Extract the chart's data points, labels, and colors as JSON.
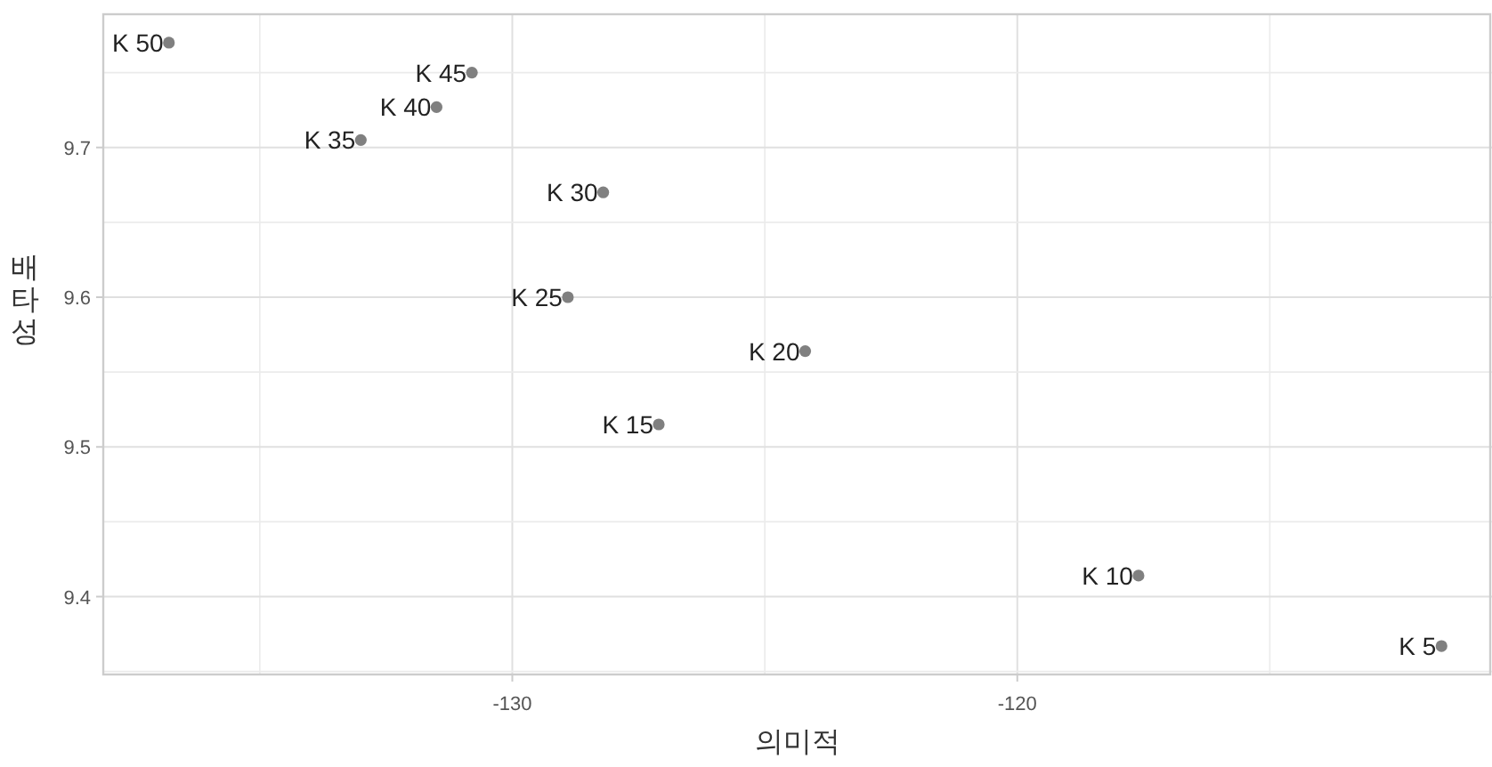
{
  "chart_data": {
    "type": "scatter",
    "xlabel": "의미적",
    "ylabel": "배타성",
    "x": [
      -136.8,
      -130.8,
      -131.5,
      -133.0,
      -128.2,
      -128.9,
      -124.2,
      -127.1,
      -117.6,
      -111.6
    ],
    "values": [
      9.77,
      9.75,
      9.727,
      9.705,
      9.67,
      9.6,
      9.564,
      9.515,
      9.414,
      9.367
    ],
    "color": "#808080",
    "marker": "circle",
    "xlim": [
      -138.1,
      -110.6
    ],
    "xticks": [
      -130,
      -120
    ],
    "ylim": [
      9.348,
      9.789
    ],
    "yticks": [
      9.4,
      9.5,
      9.6,
      9.7
    ],
    "grid": true,
    "annotations": [
      {
        "text": "K 50",
        "x": -136.8,
        "y": 9.77
      },
      {
        "text": "K 45",
        "x": -130.8,
        "y": 9.75
      },
      {
        "text": "K 40",
        "x": -131.5,
        "y": 9.727
      },
      {
        "text": "K 35",
        "x": -133.0,
        "y": 9.705
      },
      {
        "text": "K 30",
        "x": -128.2,
        "y": 9.67
      },
      {
        "text": "K 25",
        "x": -128.9,
        "y": 9.6
      },
      {
        "text": "K 20",
        "x": -124.2,
        "y": 9.564
      },
      {
        "text": "K 15",
        "x": -127.1,
        "y": 9.515
      },
      {
        "text": "K 10",
        "x": -117.6,
        "y": 9.414
      },
      {
        "text": "K 5",
        "x": -111.6,
        "y": 9.367
      }
    ]
  }
}
